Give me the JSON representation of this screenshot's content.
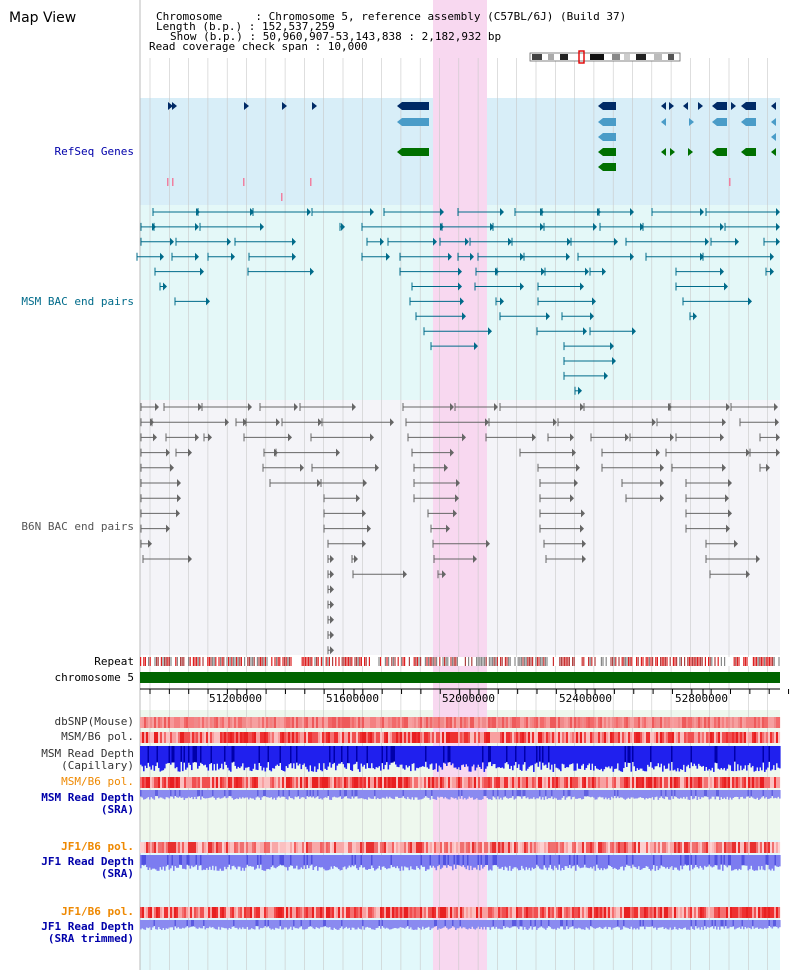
{
  "header": {
    "view_title": "Map View",
    "chromosome_line": "Chromosome     : Chromosome 5, reference assembly (C57BL/6J) (Build 37)",
    "length_line": "Length (b.p.) : 152,537,259",
    "show_line": "Show (b.p.) : 50,960,907-53,143,838 : 2,182,932 bp",
    "coverage_line": "Read coverage check span : 10,000"
  },
  "tracks": {
    "refseq": {
      "label": "RefSeq Genes",
      "color": "#0000aa"
    },
    "msm_bac": {
      "label": "MSM BAC end pairs",
      "color": "#006b8a"
    },
    "b6n_bac": {
      "label": "B6N BAC end pairs",
      "color": "#555555"
    },
    "repeat": {
      "label": "Repeat"
    },
    "chromosome": {
      "label": "chromosome 5",
      "bar_color": "#006400"
    },
    "dbsnp": {
      "label": "dbSNP(Mouse)"
    },
    "msm_b6_pol_1": {
      "label": "MSM/B6 pol."
    },
    "msm_depth_cap": {
      "label1": "MSM Read Depth",
      "label2": "(Capillary)"
    },
    "msm_b6_pol_2": {
      "label": "MSM/B6 pol.",
      "color": "#ee8800"
    },
    "msm_depth_sra": {
      "label1": "MSM Read Depth",
      "label2": "(SRA)",
      "color": "#0000aa"
    },
    "jf1_b6_pol_1": {
      "label": "JF1/B6 pol.",
      "color": "#ee8800"
    },
    "jf1_depth_sra": {
      "label1": "JF1 Read Depth",
      "label2": "(SRA)",
      "color": "#0000aa"
    },
    "jf1_b6_pol_2": {
      "label": "JF1/B6 pol.",
      "color": "#ee8800"
    },
    "jf1_depth_trim": {
      "label1": "JF1 Read Depth",
      "label2": "(SRA trimmed)",
      "color": "#0000aa"
    }
  },
  "axis": {
    "ticks": [
      "51200000",
      "51600000",
      "52000000",
      "52400000",
      "52800000"
    ]
  },
  "colors": {
    "highlight": "#f8d8f0",
    "refseq_bg": "#d8eef8",
    "msm_bg": "#e4f8f8",
    "b6n_bg": "#f4f4f8",
    "dark_blue_gene": "#002a66",
    "light_blue_gene": "#4a9cc8",
    "green_gene": "#007000"
  }
}
